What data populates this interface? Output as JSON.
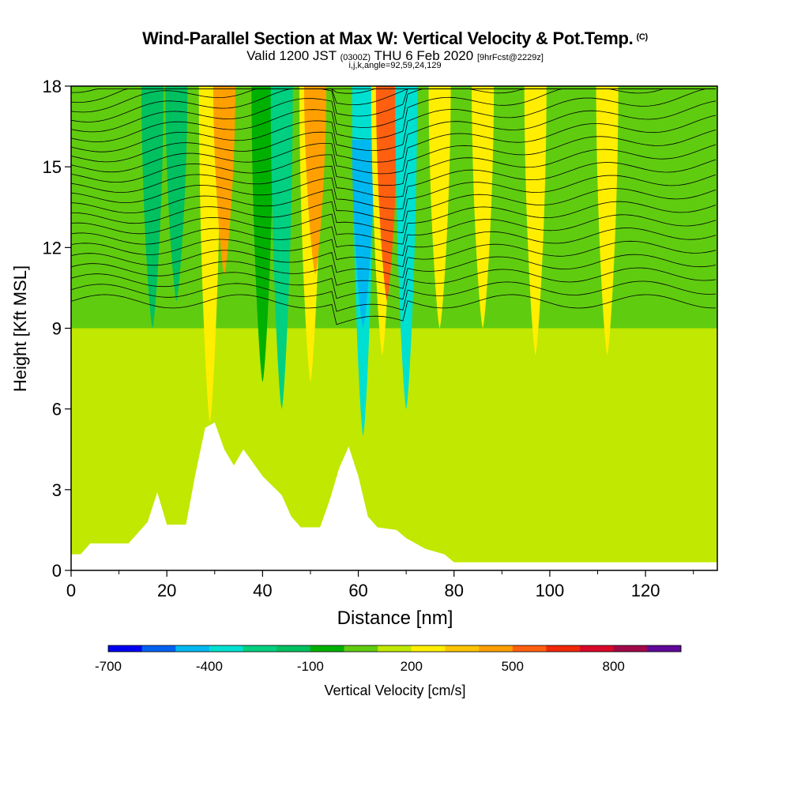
{
  "titles": {
    "main": "Wind-Parallel Section at Max W: Vertical Velocity & Pot.Temp.",
    "copyright": "(C)",
    "valid_prefix": "Valid 1200 JST",
    "valid_utc": "(0300Z)",
    "valid_date": "THU 6 Feb 2020",
    "forecast": "[9hrFcst@2229z]",
    "params": "i,j,k,angle=92,59,24,129"
  },
  "chart_data": {
    "type": "contour-section",
    "xlabel": "Distance [nm]",
    "ylabel": "Height [Kft MSL]",
    "xlim": [
      0,
      135
    ],
    "ylim": [
      0,
      18
    ],
    "x_ticks": [
      "0",
      "20",
      "40",
      "60",
      "80",
      "100",
      "120"
    ],
    "y_ticks": [
      "0",
      "3",
      "6",
      "9",
      "12",
      "15",
      "18"
    ],
    "colorbar": {
      "label": "Vertical Velocity [cm/s]",
      "tick_labels": [
        "-700",
        "-400",
        "-100",
        "200",
        "500",
        "800"
      ],
      "colors": [
        "#0000f0",
        "#0060f0",
        "#00b8f0",
        "#00e0d0",
        "#00d080",
        "#00c060",
        "#00b000",
        "#60cc10",
        "#c0e800",
        "#ffee00",
        "#ffc400",
        "#ffa000",
        "#ff6010",
        "#f02808",
        "#d80828",
        "#a00848",
        "#600898"
      ]
    },
    "terrain": [
      [
        0,
        0.6
      ],
      [
        2,
        0.6
      ],
      [
        4,
        1.0
      ],
      [
        12,
        1.0
      ],
      [
        16,
        1.8
      ],
      [
        18,
        2.9
      ],
      [
        20,
        1.7
      ],
      [
        24,
        1.7
      ],
      [
        26,
        3.6
      ],
      [
        28,
        5.3
      ],
      [
        30,
        5.5
      ],
      [
        32,
        4.5
      ],
      [
        34,
        3.9
      ],
      [
        36,
        4.5
      ],
      [
        40,
        3.5
      ],
      [
        44,
        2.8
      ],
      [
        46,
        2.0
      ],
      [
        48,
        1.6
      ],
      [
        52,
        1.6
      ],
      [
        54,
        2.6
      ],
      [
        56,
        3.8
      ],
      [
        58,
        4.6
      ],
      [
        60,
        3.5
      ],
      [
        62,
        2.0
      ],
      [
        64,
        1.6
      ],
      [
        68,
        1.5
      ],
      [
        70,
        1.2
      ],
      [
        74,
        0.8
      ],
      [
        78,
        0.6
      ],
      [
        80,
        0.3
      ],
      [
        135,
        0.3
      ]
    ],
    "velocity_bands": [
      {
        "x": 17,
        "ymin": 9,
        "ymax": 18,
        "color": "#00c060"
      },
      {
        "x": 22,
        "ymin": 10,
        "ymax": 18,
        "color": "#00c060"
      },
      {
        "x": 29,
        "ymin": 5.5,
        "ymax": 18,
        "color": "#ffee00"
      },
      {
        "x": 32,
        "ymin": 11,
        "ymax": 18,
        "color": "#ffa000"
      },
      {
        "x": 40,
        "ymin": 7,
        "ymax": 18,
        "color": "#00b000"
      },
      {
        "x": 44,
        "ymin": 6,
        "ymax": 18,
        "color": "#00d080"
      },
      {
        "x": 50,
        "ymin": 7,
        "ymax": 18,
        "color": "#ffee00"
      },
      {
        "x": 51,
        "ymin": 11,
        "ymax": 18,
        "color": "#ffa000"
      },
      {
        "x": 61,
        "ymin": 5,
        "ymax": 18,
        "color": "#00e0d0"
      },
      {
        "x": 61,
        "ymin": 9,
        "ymax": 16,
        "color": "#00b8f0"
      },
      {
        "x": 65,
        "ymin": 8,
        "ymax": 18,
        "color": "#ffee00"
      },
      {
        "x": 66,
        "ymin": 10,
        "ymax": 18,
        "color": "#ff6010"
      },
      {
        "x": 70,
        "ymin": 6,
        "ymax": 18,
        "color": "#00e0d0"
      },
      {
        "x": 77,
        "ymin": 9,
        "ymax": 18,
        "color": "#ffee00"
      },
      {
        "x": 86,
        "ymin": 9,
        "ymax": 18,
        "color": "#ffee00"
      },
      {
        "x": 97,
        "ymin": 8,
        "ymax": 18,
        "color": "#ffee00"
      },
      {
        "x": 112,
        "ymin": 8,
        "ymax": 18,
        "color": "#ffee00"
      }
    ]
  }
}
